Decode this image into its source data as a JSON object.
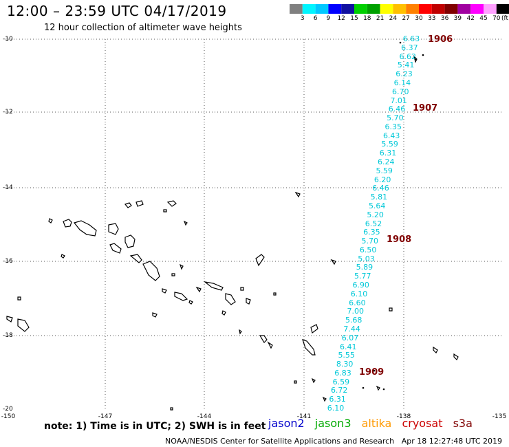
{
  "title": "12:00 – 23:59 UTC 04/17/2019",
  "subtitle": "12 hour collection of altimeter wave heights",
  "colorbar": {
    "colors": [
      "#808080",
      "#00f5ff",
      "#00c8ff",
      "#0000ff",
      "#1010a0",
      "#00d000",
      "#00a000",
      "#ffff00",
      "#ffc000",
      "#ff8000",
      "#ff0000",
      "#c00000",
      "#800000",
      "#a000a0",
      "#ff00ff",
      "#ffa0ff",
      "#000000"
    ],
    "labels": [
      "3",
      "6",
      "9",
      "12",
      "15",
      "18",
      "21",
      "24",
      "27",
      "30",
      "33",
      "36",
      "39",
      "42",
      "45",
      "70"
    ],
    "unit": "(ft)"
  },
  "axes": {
    "lat_labels": [
      "-10",
      "-12",
      "-14",
      "-16",
      "-18",
      "-20"
    ],
    "lon_labels": [
      "-150",
      "-147",
      "-144",
      "-141",
      "-138",
      "-135"
    ]
  },
  "wave_heights": [
    "6.63",
    "6.37",
    "6.62",
    "5.41",
    "6.23",
    "6.14",
    "6.70",
    "7.01",
    "6.46",
    "5.70",
    "6.35",
    "6.43",
    "5.59",
    "6.31",
    "6.24",
    "5.59",
    "6.20",
    "6.46",
    "5.81",
    "5.64",
    "5.20",
    "6.52",
    "6.35",
    "5.70",
    "6.50",
    "5.03",
    "5.89",
    "5.77",
    "6.90",
    "6.10",
    "6.60",
    "7.00",
    "5.68",
    "7.44",
    "6.07",
    "6.41",
    "5.55",
    "8.30",
    "6.83",
    "6.59",
    "6.72",
    "6.31",
    "6.10"
  ],
  "time_labels": [
    "1906",
    "1907",
    "1908",
    "1909"
  ],
  "note": "note: 1) Time is in UTC; 2) SWH is in feet",
  "legend": [
    {
      "name": "jason2",
      "color": "#0000cc"
    },
    {
      "name": "jason3",
      "color": "#00aa00"
    },
    {
      "name": "altika",
      "color": "#ff9900"
    },
    {
      "name": "cryosat",
      "color": "#cc0000"
    },
    {
      "name": "s3a",
      "color": "#800000"
    }
  ],
  "footer": {
    "org": "NOAA/NESDIS Center for Satellite Applications and Research",
    "timestamp": "Apr 18 12:27:48 UTC 2019"
  }
}
